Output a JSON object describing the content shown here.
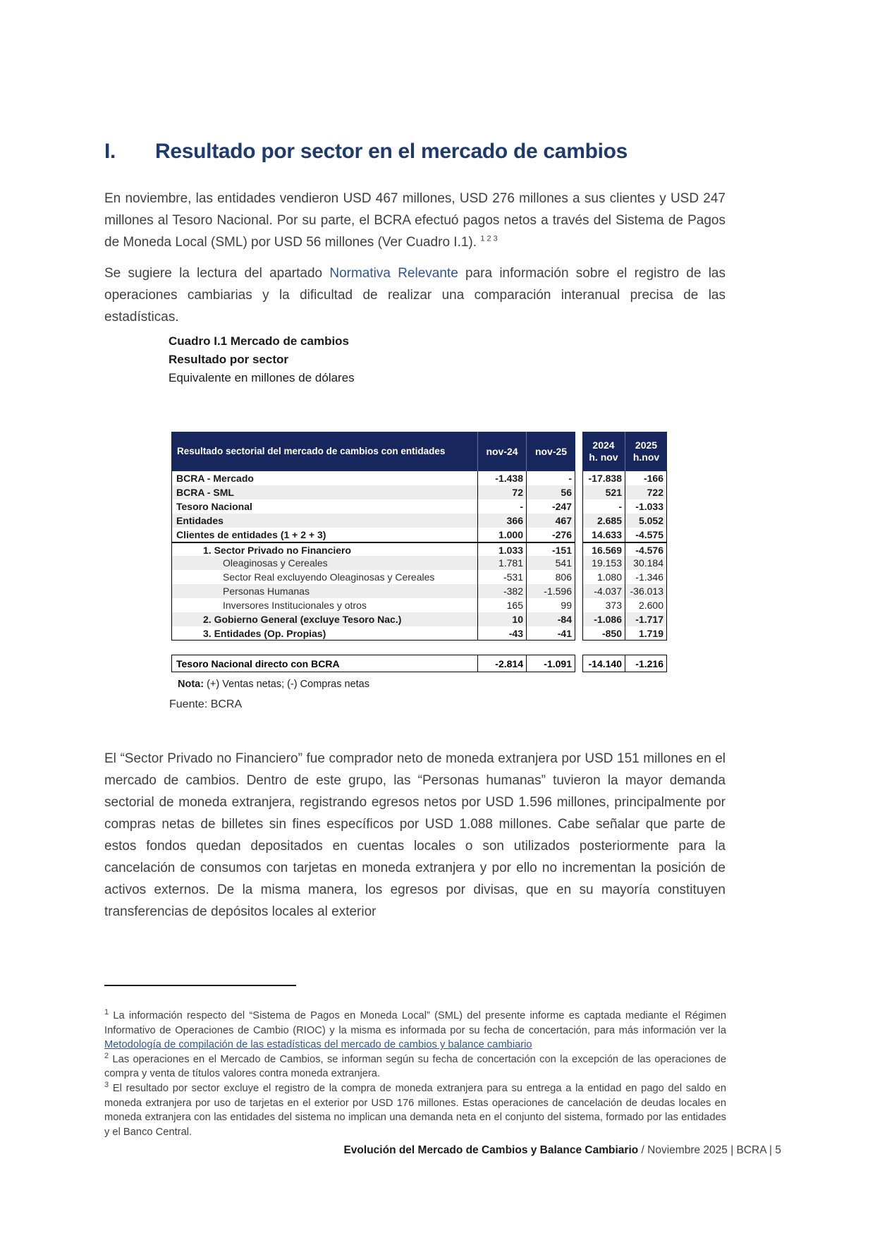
{
  "heading": {
    "number": "I.",
    "title": "Resultado por sector en el mercado de cambios"
  },
  "intro": {
    "p1": "En noviembre, las entidades vendieron USD 467 millones, USD 276 millones a sus clientes y USD 247 millones al Tesoro Nacional. Por su parte, el BCRA efectuó pagos netos a través del Sistema de Pagos de Moneda Local (SML) por USD 56 millones (Ver Cuadro I.1). ",
    "p1_sup": "1 2 3",
    "p2_pre": "Se sugiere la lectura del apartado ",
    "p2_link": "Normativa Relevante",
    "p2_post": " para información sobre el registro de las operaciones cambiarias y la dificultad de realizar una comparación interanual precisa de las estadísticas."
  },
  "table": {
    "caption1": "Cuadro I.1 Mercado de cambios",
    "caption2": "Resultado por sector",
    "caption3": "Equivalente en millones de dólares",
    "header": {
      "label": "Resultado sectorial del mercado de cambios con entidades",
      "c1": "nov-24",
      "c2": "nov-25",
      "c3_line1": "2024",
      "c3_line2": "h. nov",
      "c4_line1": "2025",
      "c4_line2": "h.nov"
    },
    "rows": [
      {
        "label": "BCRA - Mercado",
        "v": [
          "-1.438",
          "-",
          "-17.838",
          "-166"
        ]
      },
      {
        "label": "BCRA - SML",
        "v": [
          "72",
          "56",
          "521",
          "722"
        ]
      },
      {
        "label": "Tesoro Nacional",
        "v": [
          "-",
          "-247",
          "-",
          "-1.033"
        ]
      },
      {
        "label": "Entidades",
        "v": [
          "366",
          "467",
          "2.685",
          "5.052"
        ]
      },
      {
        "label": "Clientes de entidades (1 + 2 + 3)",
        "v": [
          "1.000",
          "-276",
          "14.633",
          "-4.575"
        ]
      },
      {
        "label": "1. Sector Privado no Financiero",
        "v": [
          "1.033",
          "-151",
          "16.569",
          "-4.576"
        ]
      },
      {
        "label": "Oleaginosas y Cereales",
        "v": [
          "1.781",
          "541",
          "19.153",
          "30.184"
        ]
      },
      {
        "label": "Sector Real excluyendo Oleaginosas y Cereales",
        "v": [
          "-531",
          "806",
          "1.080",
          "-1.346"
        ]
      },
      {
        "label": "Personas Humanas",
        "v": [
          "-382",
          "-1.596",
          "-4.037",
          "-36.013"
        ]
      },
      {
        "label": "Inversores Institucionales y otros",
        "v": [
          "165",
          "99",
          "373",
          "2.600"
        ]
      },
      {
        "label": "2. Gobierno General (excluye Tesoro Nac.)",
        "v": [
          "10",
          "-84",
          "-1.086",
          "-1.717"
        ]
      },
      {
        "label": "3. Entidades (Op. Propias)",
        "v": [
          "-43",
          "-41",
          "-850",
          "1.719"
        ]
      }
    ],
    "bottom": {
      "label": "Tesoro Nacional directo con BCRA",
      "v": [
        "-2.814",
        "-1.091",
        "-14.140",
        "-1.216"
      ]
    },
    "note_label": "Nota:",
    "note_text": " (+) Ventas netas; (-) Compras netas",
    "source": "Fuente: BCRA"
  },
  "body": {
    "p": "El “Sector Privado no Financiero” fue comprador neto de moneda extranjera por USD 151 millones en el mercado de cambios. Dentro de este grupo, las “Personas humanas” tuvieron la mayor demanda sectorial de moneda extranjera, registrando egresos netos por USD 1.596 millones, principalmente por compras netas de billetes sin fines específicos por USD 1.088 millones. Cabe señalar que parte de estos fondos quedan depositados en cuentas locales o son utilizados posteriormente para la cancelación de consumos con tarjetas en moneda extranjera y por ello no incrementan la posición de activos externos. De la misma manera, los egresos por divisas, que en su mayoría constituyen transferencias de depósitos locales al exterior"
  },
  "footnotes": {
    "f1_marker": "1",
    "f1_text": " La información respecto del “Sistema de Pagos en Moneda Local” (SML) del presente informe es captada mediante el Régimen Informativo de Operaciones de Cambio (RIOC) y la misma es informada por su fecha de concertación, para más información ver la ",
    "f1_link": "Metodología de compilación de las estadísticas del mercado de cambios y balance cambiario",
    "f2_marker": "2",
    "f2_text": " Las operaciones en el Mercado de Cambios, se informan según su fecha de concertación con la excepción de las operaciones de compra y venta de títulos valores contra moneda extranjera.",
    "f3_marker": "3",
    "f3_text": " El resultado por sector excluye el registro de la compra de moneda extranjera para su entrega a la entidad en pago del saldo en moneda extranjera por uso de tarjetas en el exterior por USD 176 millones. Estas operaciones de cancelación de deudas locales en moneda extranjera con las entidades del sistema no implican una demanda neta en el conjunto del sistema, formado por las entidades y el Banco Central."
  },
  "footer": {
    "title": "Evolución del Mercado de Cambios y Balance Cambiario",
    "rest": " / Noviembre 2025 | BCRA | 5"
  },
  "colors": {
    "header_navy": "#17265c",
    "heading_navy": "#1f3a6d",
    "link_blue": "#2e5496",
    "row_shade": "#ededed"
  }
}
